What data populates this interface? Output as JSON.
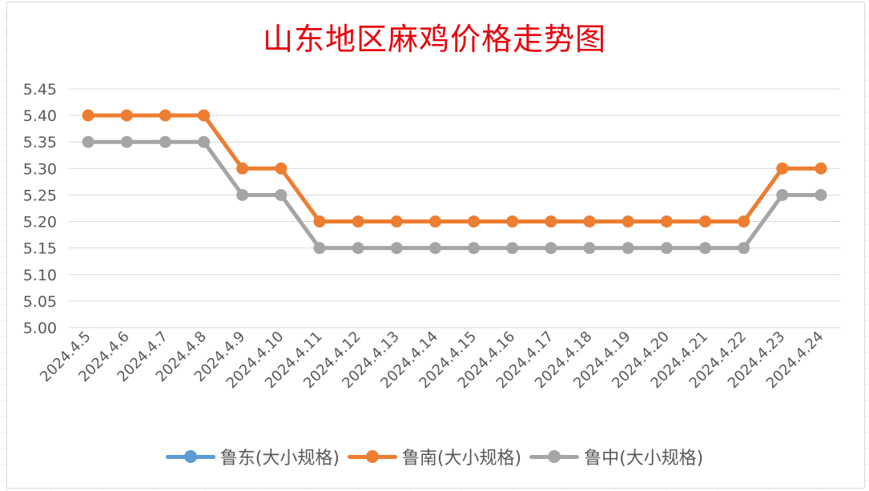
{
  "chart_data": {
    "type": "line",
    "title": "山东地区麻鸡价格走势图",
    "categories": [
      "2024.4.5",
      "2024.4.6",
      "2024.4.7",
      "2024.4.8",
      "2024.4.9",
      "2024.4.10",
      "2024.4.11",
      "2024.4.12",
      "2024.4.13",
      "2024.4.14",
      "2024.4.15",
      "2024.4.16",
      "2024.4.17",
      "2024.4.18",
      "2024.4.19",
      "2024.4.20",
      "2024.4.21",
      "2024.4.22",
      "2024.4.23",
      "2024.4.24"
    ],
    "y_ticks": [
      "5.00",
      "5.05",
      "5.10",
      "5.15",
      "5.20",
      "5.25",
      "5.30",
      "5.35",
      "5.40",
      "5.45"
    ],
    "ylim": [
      5.0,
      5.45
    ],
    "grid": true,
    "legend_position": "bottom",
    "series": [
      {
        "name": "鲁东(大小规格)",
        "color": "#5b9bd5",
        "values": [
          null,
          null,
          null,
          null,
          null,
          null,
          null,
          null,
          null,
          null,
          null,
          null,
          null,
          null,
          null,
          null,
          null,
          null,
          null,
          null
        ]
      },
      {
        "name": "鲁南(大小规格)",
        "color": "#ed7d31",
        "values": [
          5.4,
          5.4,
          5.4,
          5.4,
          5.3,
          5.3,
          5.2,
          5.2,
          5.2,
          5.2,
          5.2,
          5.2,
          5.2,
          5.2,
          5.2,
          5.2,
          5.2,
          5.2,
          5.3,
          5.3
        ]
      },
      {
        "name": "鲁中(大小规格)",
        "color": "#a5a5a5",
        "values": [
          5.35,
          5.35,
          5.35,
          5.35,
          5.25,
          5.25,
          5.15,
          5.15,
          5.15,
          5.15,
          5.15,
          5.15,
          5.15,
          5.15,
          5.15,
          5.15,
          5.15,
          5.15,
          5.25,
          5.25
        ]
      }
    ]
  }
}
